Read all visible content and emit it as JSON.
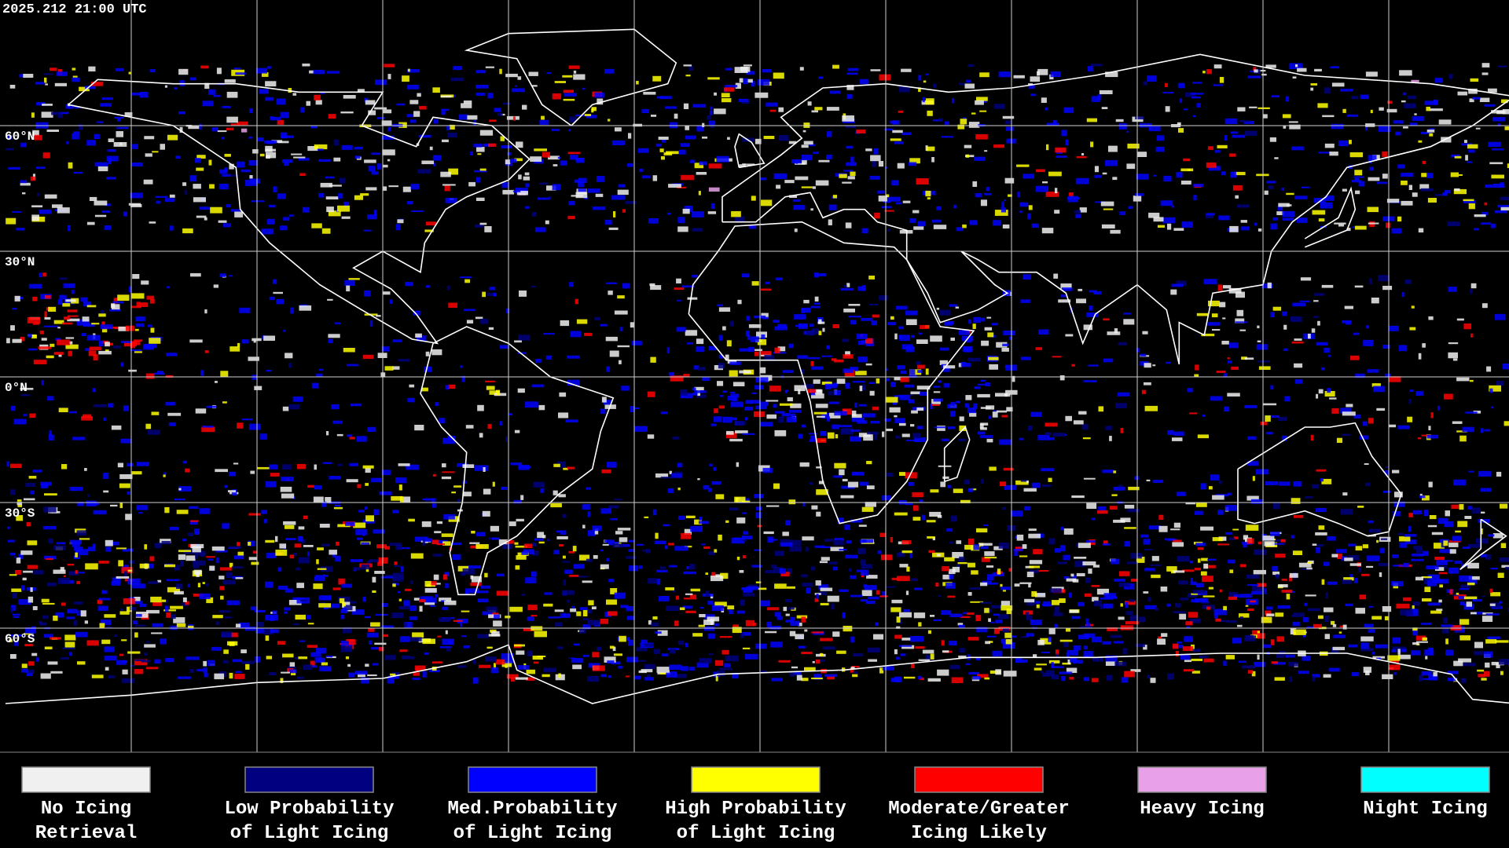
{
  "header": {
    "timestamp": "2025.212 21:00 UTC"
  },
  "latitude_labels": [
    "60°N",
    "30°N",
    "0°N",
    "30°S",
    "60°S"
  ],
  "legend": [
    {
      "label": [
        "No Icing",
        "Retrieval"
      ],
      "color": "#f0f0f0"
    },
    {
      "label": [
        "Low Probability",
        "of Light Icing"
      ],
      "color": "#000080"
    },
    {
      "label": [
        "Med.Probability",
        "of Light Icing"
      ],
      "color": "#0000ff"
    },
    {
      "label": [
        "High Probability",
        "of Light Icing"
      ],
      "color": "#ffff00"
    },
    {
      "label": [
        "Moderate/Greater",
        "Icing Likely"
      ],
      "color": "#ff0000"
    },
    {
      "label": [
        "Heavy Icing"
      ],
      "color": "#e8a0e8"
    },
    {
      "label": [
        "Night Icing"
      ],
      "color": "#00ffff"
    }
  ]
}
